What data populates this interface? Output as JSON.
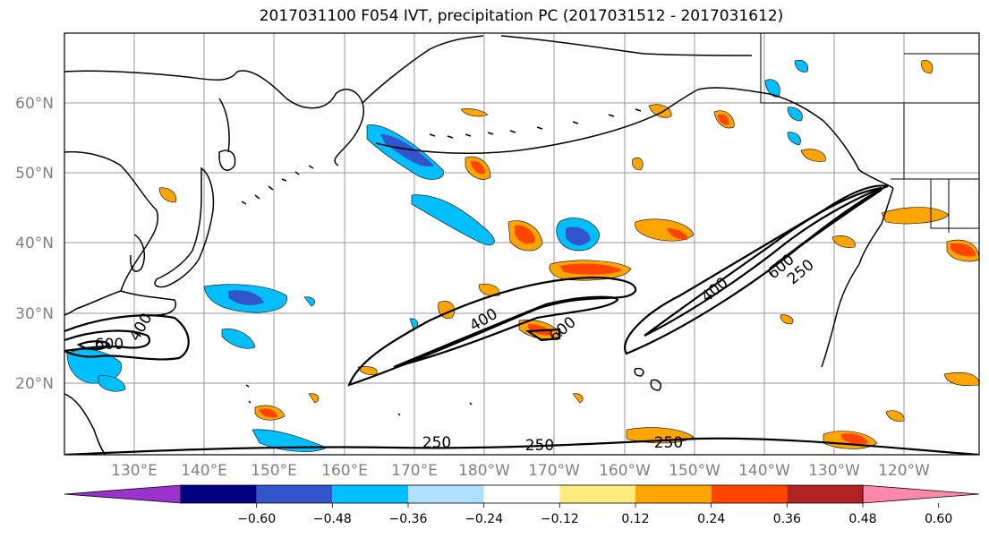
{
  "title": "2017031100 F054 IVT, precipitation PC (2017031512 - 2017031612)",
  "map": {
    "lat_labels": [
      "60°N",
      "50°N",
      "40°N",
      "30°N",
      "20°N"
    ],
    "lon_labels": [
      "130°E",
      "140°E",
      "150°E",
      "160°E",
      "170°E",
      "180°W",
      "170°W",
      "160°W",
      "150°W",
      "140°W",
      "130°W",
      "120°W"
    ],
    "ivt_contour_labels": [
      "400",
      "600",
      "400",
      "600",
      "400",
      "600",
      "250",
      "250",
      "250",
      "250"
    ]
  },
  "colorbar": {
    "colors": [
      "#9933cc",
      "#000080",
      "#3355cc",
      "#00bfff",
      "#b0e0ff",
      "#ffffff",
      "#ffeb80",
      "#ffa500",
      "#ff4500",
      "#b22222",
      "#ff88aa"
    ],
    "tick_labels": [
      "−0.60",
      "−0.48",
      "−0.36",
      "−0.24",
      "−0.12",
      "0.12",
      "0.24",
      "0.36",
      "0.48",
      "0.60"
    ]
  }
}
